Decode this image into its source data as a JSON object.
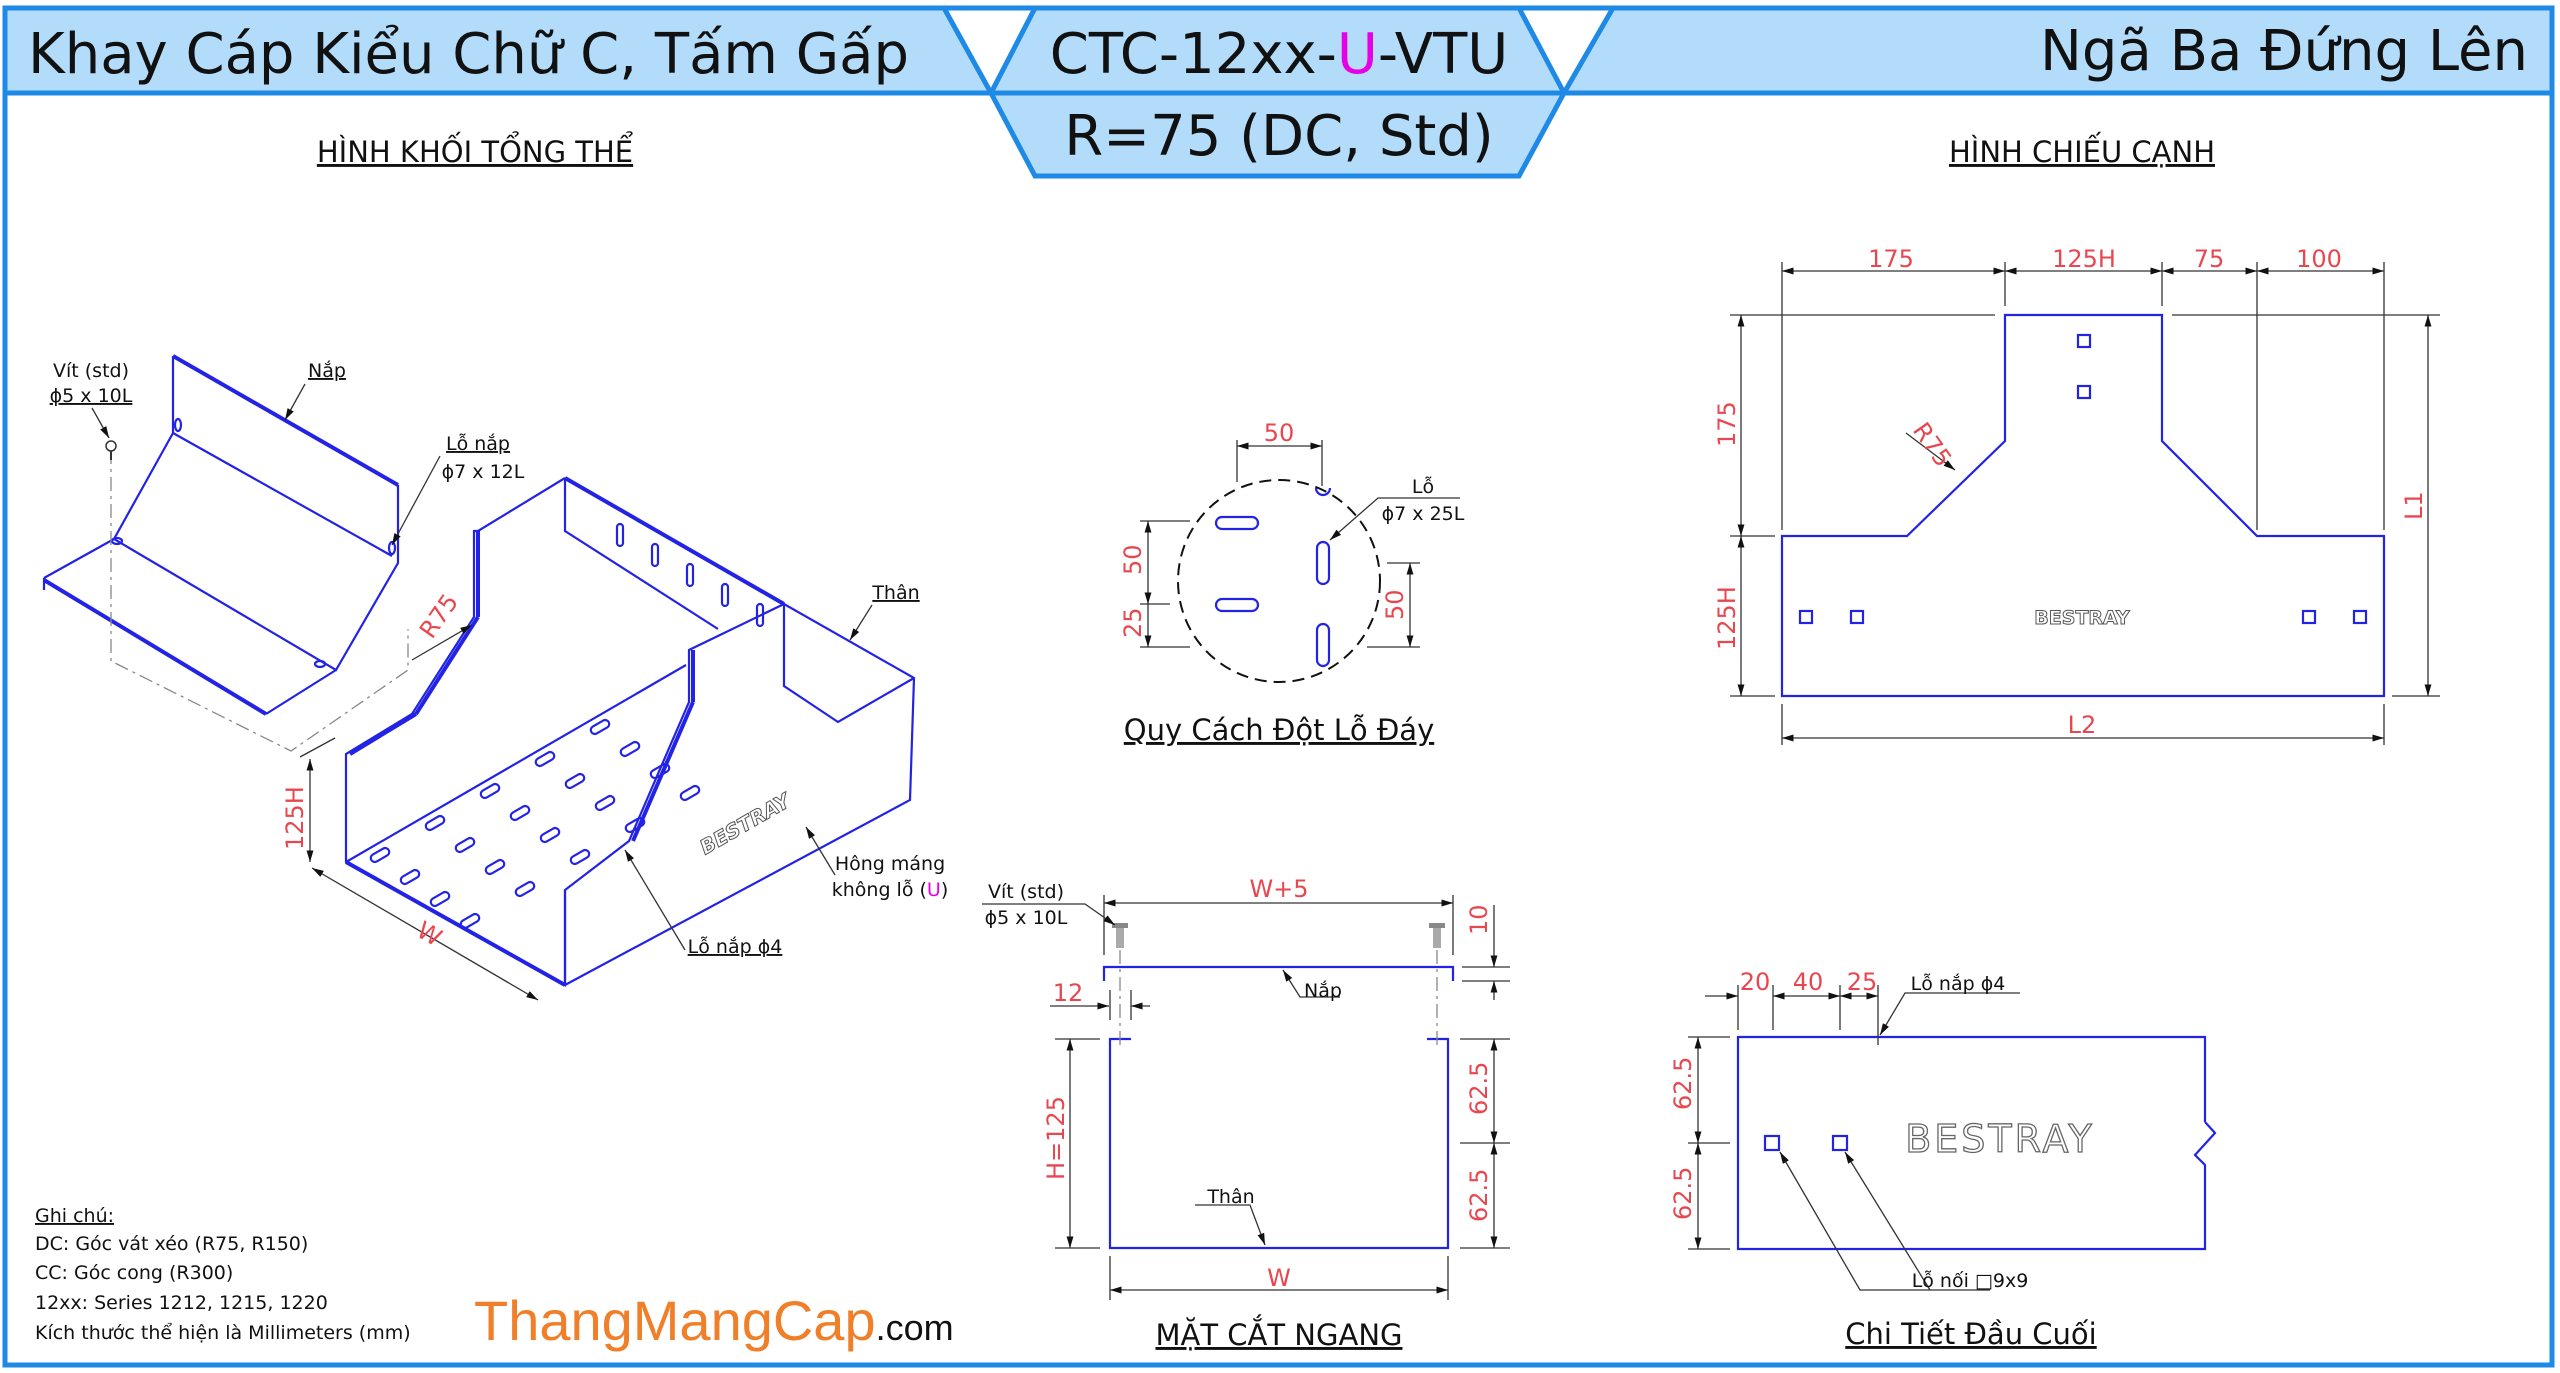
{
  "header": {
    "title_left": "Khay Cáp Kiểu Chữ C, Tấm Gấp",
    "code_prefix": "CTC-12xx-",
    "code_highlight": "U",
    "code_suffix": "-VTU",
    "spec": "R=75 (DC, Std)",
    "title_right": "Ngã Ba Đứng Lên"
  },
  "iso_view": {
    "title": "HÌNH KHỐI TỔNG THỂ",
    "screw_label": "Vít (std)",
    "screw_size": "ϕ5 x 10L",
    "cover_label": "Nắp",
    "cover_hole_label": "Lỗ nắp",
    "cover_hole_size": "ϕ7 x 12L",
    "radius": "R75",
    "body_label": "Thân",
    "height": "125H",
    "width": "W",
    "side_label_1": "Hông máng",
    "side_label_2_prefix": "không lỗ (",
    "side_label_2_highlight": "U",
    "side_label_2_suffix": ")",
    "cover_hole_small": "Lỗ nắp ϕ4",
    "logo": "BESTRAY"
  },
  "side_view": {
    "title": "HÌNH CHIẾU CẠNH",
    "top_dims": [
      "175",
      "125H",
      "75",
      "100"
    ],
    "left_dims": [
      "175",
      "125H"
    ],
    "radius": "R75",
    "l1": "L1",
    "l2": "L2",
    "logo": "BESTRAY"
  },
  "hole_pattern": {
    "title": "Quy Cách Đột Lỗ Đáy",
    "top_dim": "50",
    "left_dims": [
      "50",
      "25"
    ],
    "right_dim": "50",
    "hole_label": "Lỗ",
    "hole_size": "ϕ7 x 25L"
  },
  "cross_section": {
    "title": "MẶT CẮT NGANG",
    "screw_label": "Vít (std)",
    "screw_size": "ϕ5 x 10L",
    "cover_width": "W+5",
    "cover_gap": "10",
    "cover_label": "Nắp",
    "lip": "12",
    "height": "H=125",
    "half_heights": [
      "62.5",
      "62.5"
    ],
    "body_label": "Thân",
    "width": "W"
  },
  "end_detail": {
    "title": "Chi Tiết Đầu Cuối",
    "top_dims": [
      "20",
      "40",
      "25"
    ],
    "cover_hole": "Lỗ nắp ϕ4",
    "left_dims": [
      "62.5",
      "62.5"
    ],
    "joint_hole": "Lỗ nối □9x9",
    "logo": "BESTRAY"
  },
  "notes": {
    "heading": "Ghi chú:",
    "lines": [
      "DC: Góc vát xéo (R75, R150)",
      "CC: Góc cong (R300)",
      "12xx: Series 1212, 1215, 1220",
      "Kích thước thể hiện là Millimeters (mm)"
    ]
  },
  "brand": {
    "name": "ThangMangCap",
    "suffix": ".com"
  },
  "colors": {
    "frame": "#1e8ae6",
    "header_fill": "#b3dcfb",
    "drawing_line": "#2323e6",
    "dimension_text": "#e8474f",
    "highlight": "#e600e6",
    "brand": "#f07f2a"
  }
}
